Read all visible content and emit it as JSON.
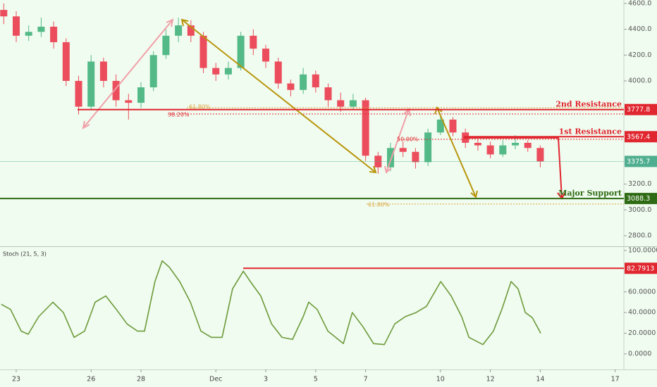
{
  "chart_data": [
    {
      "type": "candlestick",
      "xlim": [
        -0.65,
        24.35
      ],
      "xticks": [
        {
          "value": 0,
          "label": "23"
        },
        {
          "value": 3,
          "label": "26"
        },
        {
          "value": 5,
          "label": "28"
        },
        {
          "value": 8,
          "label": "Dec"
        },
        {
          "value": 10,
          "label": "3"
        },
        {
          "value": 12,
          "label": "5"
        },
        {
          "value": 14,
          "label": "7"
        },
        {
          "value": 17,
          "label": "10"
        },
        {
          "value": 19,
          "label": "12"
        },
        {
          "value": 21,
          "label": "14"
        },
        {
          "value": 24,
          "label": "17"
        }
      ],
      "ylim": [
        2718,
        4627
      ],
      "yticks": [
        {
          "value": 2800,
          "label": "2800.0"
        },
        {
          "value": 3000,
          "label": "3000.0"
        },
        {
          "value": 3200,
          "label": "3200.0"
        },
        {
          "value": 4000,
          "label": "4000.0"
        },
        {
          "value": 4200,
          "label": "4200.0"
        },
        {
          "value": 4400,
          "label": "4400.0"
        },
        {
          "value": 4600,
          "label": "4600.0"
        }
      ],
      "x": [
        -0.5,
        0,
        0.5,
        1,
        1.5,
        2,
        2.5,
        3,
        3.5,
        4,
        4.5,
        5,
        5.5,
        6,
        6.5,
        7,
        7.5,
        8,
        8.5,
        9,
        9.5,
        10,
        10.5,
        11,
        11.5,
        12,
        12.5,
        13,
        13.5,
        14,
        14.5,
        15,
        15.5,
        16,
        16.5,
        17,
        17.5,
        18,
        18.5,
        19,
        19.5,
        20,
        20.5,
        21
      ],
      "open": [
        4550,
        4500,
        4350,
        4380,
        4420,
        4300,
        4000,
        3800,
        4150,
        4000,
        3850,
        3830,
        3950,
        4200,
        4350,
        4430,
        4350,
        4100,
        4050,
        4100,
        4350,
        4250,
        4150,
        3980,
        3930,
        4050,
        3950,
        3850,
        3800,
        3850,
        3420,
        3330,
        3480,
        3450,
        3370,
        3600,
        3700,
        3600,
        3520,
        3500,
        3430,
        3500,
        3520,
        3480
      ],
      "high": [
        4600,
        4540,
        4430,
        4490,
        4460,
        4330,
        4040,
        4200,
        4180,
        4050,
        3900,
        3990,
        4230,
        4400,
        4490,
        4470,
        4380,
        4140,
        4150,
        4380,
        4400,
        4280,
        4180,
        4010,
        4100,
        4080,
        3980,
        3910,
        3900,
        3870,
        3450,
        3520,
        3530,
        3480,
        3630,
        3740,
        3720,
        3630,
        3550,
        3530,
        3540,
        3580,
        3540,
        3500
      ],
      "low": [
        4440,
        4300,
        4310,
        4340,
        4250,
        3960,
        3740,
        3780,
        3950,
        3800,
        3700,
        3790,
        3920,
        4170,
        4300,
        4300,
        4060,
        4000,
        4010,
        4080,
        4200,
        4100,
        3940,
        3880,
        3900,
        3910,
        3800,
        3760,
        3780,
        3380,
        3280,
        3300,
        3410,
        3320,
        3340,
        3580,
        3570,
        3480,
        3460,
        3400,
        3410,
        3470,
        3450,
        3330
      ],
      "close": [
        4500,
        4350,
        4380,
        4420,
        4300,
        4000,
        3800,
        4150,
        4000,
        3850,
        3830,
        3950,
        4200,
        4350,
        4430,
        4350,
        4100,
        4050,
        4100,
        4350,
        4250,
        4150,
        3980,
        3930,
        4050,
        3950,
        3850,
        3800,
        3850,
        3420,
        3330,
        3480,
        3450,
        3370,
        3600,
        3700,
        3600,
        3520,
        3500,
        3430,
        3500,
        3520,
        3480,
        3375.7
      ],
      "up_color": "#53b987",
      "down_color": "#eb4d5c",
      "levels": [
        {
          "name": "2nd Resistance",
          "value": 3777.8,
          "color": "#e0262f"
        },
        {
          "name": "1st Resistance",
          "value": 3567.4,
          "color": "#e0262f"
        },
        {
          "name": "Major Support",
          "value": 3088.3,
          "color": "#2e6b14"
        }
      ],
      "last_price": 3375.7,
      "last_price_color": "#4fae8f",
      "annotations": [
        "61.80%",
        "38.20%",
        "50.00%",
        "61.80%"
      ]
    },
    {
      "type": "line",
      "title": "Stoch (21, 5, 3)",
      "xlim": [
        -0.65,
        24.35
      ],
      "ylim": [
        -15,
        102.7
      ],
      "yticks": [
        {
          "value": 0,
          "label": "0.0000"
        },
        {
          "value": 20,
          "label": "20.0000"
        },
        {
          "value": 40,
          "label": "40.0000"
        },
        {
          "value": 60,
          "label": "60.0000"
        },
        {
          "value": 100,
          "label": "100.0000"
        }
      ],
      "x": [
        -0.6,
        -0.23,
        0.2,
        0.48,
        0.9,
        1.47,
        1.89,
        2.32,
        2.74,
        3.16,
        3.59,
        4.01,
        4.44,
        4.86,
        5.14,
        5.56,
        5.85,
        6.13,
        6.55,
        6.98,
        7.4,
        7.82,
        8.25,
        8.67,
        9.1,
        9.38,
        9.8,
        10.23,
        10.65,
        11.07,
        11.5,
        11.72,
        12.06,
        12.49,
        13.11,
        13.47,
        13.9,
        14.32,
        14.75,
        15.17,
        15.59,
        16.02,
        16.44,
        17.01,
        17.43,
        17.85,
        18.14,
        18.7,
        19.12,
        19.46,
        19.83,
        20.11,
        20.4,
        20.68,
        21.02
      ],
      "values": [
        48,
        43,
        22,
        19,
        36,
        50,
        40,
        16,
        22,
        50,
        56,
        43,
        29,
        22,
        22,
        70,
        90,
        84,
        70,
        50,
        22,
        16,
        16,
        63,
        80,
        70,
        56,
        29,
        16,
        14,
        36,
        50,
        43,
        22,
        10,
        40,
        26,
        10,
        9,
        29,
        36,
        40,
        46,
        70,
        56,
        36,
        16,
        9,
        22,
        43,
        70,
        63,
        40,
        35,
        20
      ],
      "color": "#6b9a3a",
      "level": 82.7913,
      "level_color": "#e0262f"
    }
  ]
}
